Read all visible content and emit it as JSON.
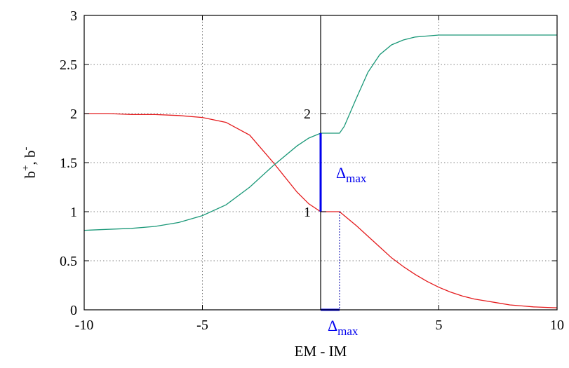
{
  "chart_data": {
    "type": "line",
    "xlabel": "EM - IM",
    "ylabel": {
      "base1": "b",
      "sup1": "+",
      "sep": ", ",
      "base2": "b",
      "sup2": "-"
    },
    "xlim": [
      -10,
      10
    ],
    "ylim": [
      0,
      3
    ],
    "x_ticks": [
      -10,
      -5,
      0,
      5,
      10
    ],
    "x_tick_labels": [
      "-10",
      "-5",
      "",
      "5",
      "10"
    ],
    "y_ticks": [
      0,
      0.5,
      1,
      1.5,
      2,
      2.5,
      3
    ],
    "y_tick_labels": [
      "0",
      "0.5",
      "1",
      "1.5",
      "2",
      "2.5",
      "3"
    ],
    "grid": true,
    "series": [
      {
        "color": "#e41a1c",
        "x": [
          -10,
          -9,
          -8,
          -7,
          -6,
          -5,
          -4,
          -3,
          -2,
          -1,
          -0.5,
          0,
          0.8,
          1,
          1.5,
          2,
          2.5,
          3,
          3.5,
          4,
          4.5,
          5,
          5.5,
          6,
          6.5,
          7,
          7.5,
          8,
          8.5,
          9,
          9.5,
          10
        ],
        "values": [
          2.0,
          2.0,
          1.99,
          1.99,
          1.98,
          1.96,
          1.91,
          1.78,
          1.5,
          1.2,
          1.08,
          1.0,
          1.0,
          0.96,
          0.86,
          0.75,
          0.64,
          0.53,
          0.44,
          0.36,
          0.29,
          0.23,
          0.18,
          0.14,
          0.11,
          0.09,
          0.07,
          0.05,
          0.04,
          0.03,
          0.025,
          0.02
        ]
      },
      {
        "color": "#1a9878",
        "x": [
          -10,
          -9,
          -8,
          -7,
          -6,
          -5,
          -4,
          -3,
          -2,
          -1,
          -0.5,
          0,
          0.8,
          1,
          1.5,
          2,
          2.5,
          3,
          3.5,
          4,
          4.5,
          5,
          6,
          7,
          8,
          9,
          10
        ],
        "values": [
          0.81,
          0.82,
          0.83,
          0.85,
          0.89,
          0.96,
          1.07,
          1.25,
          1.47,
          1.67,
          1.75,
          1.8,
          1.8,
          1.87,
          2.15,
          2.42,
          2.6,
          2.7,
          2.75,
          2.78,
          2.79,
          2.8,
          2.8,
          2.8,
          2.8,
          2.8,
          2.8
        ]
      }
    ],
    "annotations": {
      "delta_label": "Δ",
      "delta_sub": "max",
      "inset_tick_2": "2",
      "inset_tick_1": "1",
      "vertical_line_x": 0,
      "delta_x": 0.8,
      "bar_low": 1.0,
      "bar_high": 1.8
    }
  }
}
